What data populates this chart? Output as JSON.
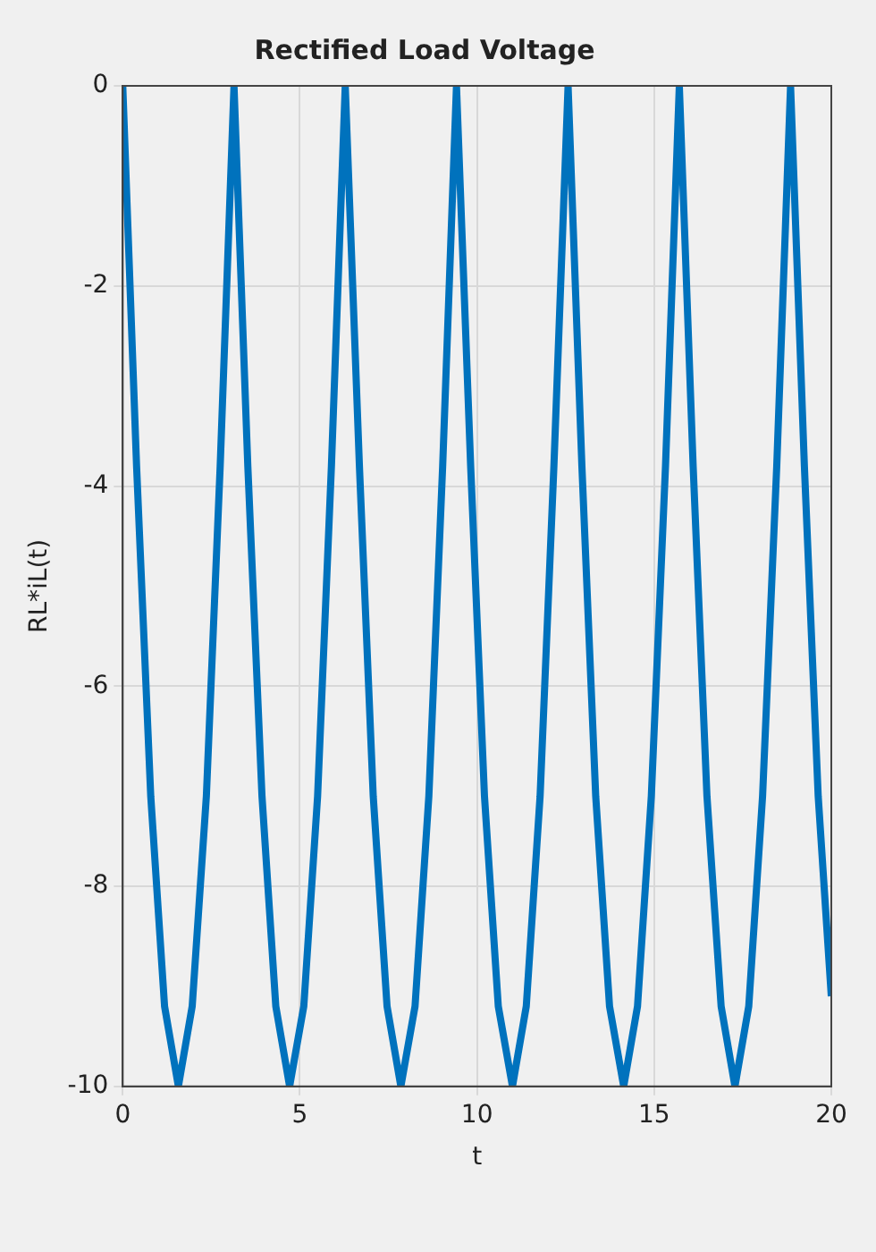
{
  "chart_data": {
    "type": "line",
    "title": "Rectified Load Voltage",
    "xlabel": "t",
    "ylabel": "RL*iL(t)",
    "x": [
      0,
      0.39,
      0.79,
      1.18,
      1.57,
      1.96,
      2.36,
      2.75,
      3.14,
      3.53,
      3.93,
      4.32,
      4.71,
      5.11,
      5.5,
      5.89,
      6.28,
      6.68,
      7.07,
      7.46,
      7.85,
      8.25,
      8.64,
      9.03,
      9.42,
      9.82,
      10.21,
      10.6,
      11,
      11.39,
      11.78,
      12.17,
      12.57,
      12.96,
      13.35,
      13.74,
      14.14,
      14.53,
      14.92,
      15.32,
      15.71,
      16.1,
      16.49,
      16.89,
      17.28,
      17.67,
      18.06,
      18.46,
      18.85,
      19.24,
      19.63,
      20
    ],
    "series": [
      {
        "color": "#0072bd",
        "values": [
          0,
          -3.8,
          -7.1,
          -9.2,
          -10,
          -9.2,
          -7.1,
          -3.8,
          0,
          -3.8,
          -7.1,
          -9.2,
          -10,
          -9.2,
          -7.1,
          -3.8,
          0,
          -3.8,
          -7.1,
          -9.2,
          -10,
          -9.2,
          -7.1,
          -3.8,
          0,
          -3.8,
          -7.1,
          -9.2,
          -10,
          -9.2,
          -7.1,
          -3.8,
          0,
          -3.8,
          -7.1,
          -9.2,
          -10,
          -9.2,
          -7.1,
          -3.8,
          0,
          -3.8,
          -7.1,
          -9.2,
          -10,
          -9.2,
          -7.1,
          -3.8,
          0,
          -3.8,
          -7.1,
          -9.1
        ]
      }
    ],
    "xlim": [
      0,
      20
    ],
    "xticks": [
      0,
      5,
      10,
      15,
      20
    ],
    "ylim": [
      -10,
      0
    ],
    "yticks": [
      -10,
      -8,
      -6,
      -4,
      -2,
      0
    ],
    "grid": true,
    "legend": false,
    "marker": "none",
    "line_style": "solid"
  }
}
